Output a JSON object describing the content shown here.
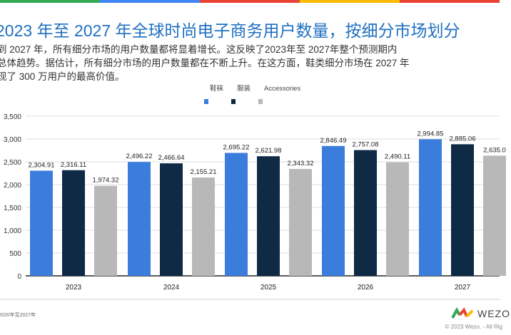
{
  "title": "2023 年至 2027 年全球时尚电子商务用户数量，按细分市场划分",
  "description": "到 2027 年，所有细分市场的用户数量都将显着增长。这反映了2023年至 2027年整个预测期内\n总体趋势。据估计，所有细分市场的用户数量都在不断上升。在这方面，鞋类细分市场在 2027 年\n现了 300 万用户的最高价值。",
  "footnote": "2020年至2027年",
  "copyright": "© 2023 Wezo. - All Rig",
  "logo": "WEZO",
  "colors": {
    "topbar": [
      "#34a853",
      "#4285f4",
      "#ea4335",
      "#fbbc05",
      "#ea4335"
    ]
  },
  "chart_data": {
    "type": "bar",
    "categories": [
      "2023",
      "2024",
      "2025",
      "2026",
      "2027"
    ],
    "series": [
      {
        "name": "鞋袜",
        "color": "#3b7ddd",
        "values": [
          2304.91,
          2496.22,
          2695.22,
          2846.49,
          2994.85
        ],
        "labels": [
          "2,304.91",
          "2,496.22",
          "2,695.22",
          "2,846.49",
          "2,994.85"
        ]
      },
      {
        "name": "服装",
        "color": "#0f2a44",
        "values": [
          2316.11,
          2466.64,
          2621.98,
          2757.08,
          2885.06
        ],
        "labels": [
          "2,316.11",
          "2,466.64",
          "2,621.98",
          "2,757.08",
          "2,885.06"
        ]
      },
      {
        "name": "Accessories",
        "color": "#b8b8b8",
        "values": [
          1974.32,
          2155.21,
          2343.32,
          2490.11,
          2635.0
        ],
        "labels": [
          "1,974.32",
          "2,155.21",
          "2,343.32",
          "2,490.11",
          "2,635.0"
        ]
      }
    ],
    "yticks": [
      "0",
      "500",
      "1,000",
      "1,500",
      "2,000",
      "2,500",
      "3,000",
      "3,500"
    ],
    "ylim": [
      0,
      3500
    ],
    "grid": true,
    "legend": "top-center"
  }
}
